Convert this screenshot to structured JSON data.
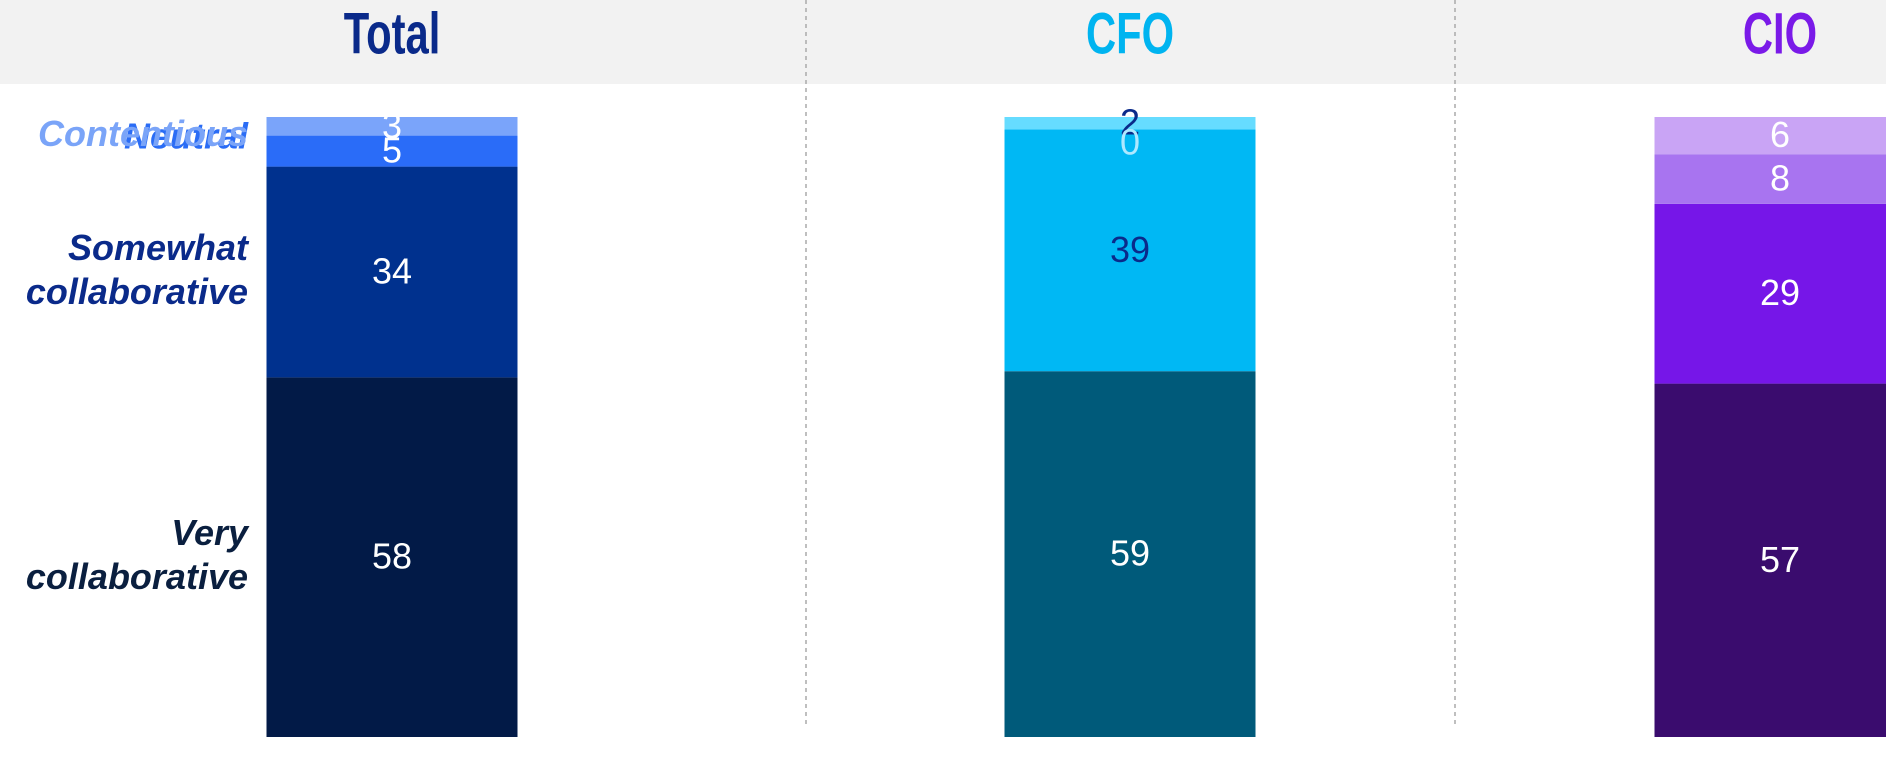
{
  "chart_data": {
    "type": "stacked_bar",
    "categories": [
      "Total",
      "CFO",
      "CIO"
    ],
    "category_colors": [
      "#0a2a8a",
      "#00b4f0",
      "#7a1ae8"
    ],
    "ylim": [
      0,
      100
    ],
    "series": [
      {
        "name": "Very collaborative",
        "color": "#0a1f3f",
        "colors": [
          "#021a47",
          "#005a7a",
          "#3a0c6e"
        ],
        "label_colors": [
          "#ffffff",
          "#ffffff",
          "#ffffff"
        ],
        "values": [
          58,
          59,
          57
        ]
      },
      {
        "name": "Somewhat collaborative",
        "color": "#0a2a8a",
        "colors": [
          "#00318e",
          "#00b8f4",
          "#7616e8"
        ],
        "label_colors": [
          "#ffffff",
          "#0a2a8a",
          "#ffffff"
        ],
        "values": [
          34,
          39,
          29
        ]
      },
      {
        "name": "Neutral",
        "color": "#2a6cf5",
        "colors": [
          "#2a6cf8",
          "#66dcff",
          "#a874f0"
        ],
        "label_colors": [
          "#ffffff",
          "#0a2a8a",
          "#ffffff"
        ],
        "values": [
          5,
          2,
          8
        ]
      },
      {
        "name": "Contentious",
        "color": "#7aa4f8",
        "colors": [
          "#7aa4fa",
          "#bff0ff",
          "#c9a4f5"
        ],
        "label_colors": [
          "#ffffff",
          "#aee8ff",
          "#ffffff"
        ],
        "values": [
          3,
          0,
          6
        ]
      }
    ]
  }
}
